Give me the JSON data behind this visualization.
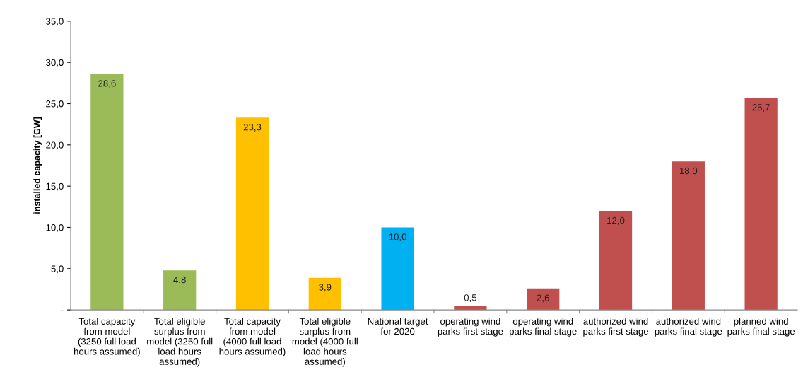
{
  "chart_data": {
    "type": "bar",
    "ylabel": "installed capacity [GW]",
    "categories": [
      "Total capacity\nfrom model\n(3250 full load\nhours assumed)",
      "Total eligible\nsurplus from\nmodel (3250 full\nload hours\nassumed)",
      "Total capacity\nfrom model\n(4000 full load\nhours assumed)",
      "Total eligible\nsurplus from\nmodel (4000 full\nload hours\nassumed)",
      "National target\nfor 2020",
      "operating wind\nparks first stage",
      "operating wind\nparks final stage",
      "authorized wind\nparks first stage",
      "authorized wind\nparks final stage",
      "planned wind\nparks final stage"
    ],
    "values": [
      28.6,
      4.8,
      23.3,
      3.9,
      10.0,
      0.5,
      2.6,
      12.0,
      18.0,
      25.7
    ],
    "value_labels": [
      "28,6",
      "4,8",
      "23,3",
      "3,9",
      "10,0",
      "0,5",
      "2,6",
      "12,0",
      "18,0",
      "25,7"
    ],
    "colors": [
      "#9bbb59",
      "#9bbb59",
      "#ffc000",
      "#ffc000",
      "#00b0f0",
      "#c0504d",
      "#c0504d",
      "#c0504d",
      "#c0504d",
      "#c0504d"
    ],
    "ylim": [
      0,
      35
    ],
    "yticks": [
      {
        "value": 0,
        "label": "-"
      },
      {
        "value": 5,
        "label": "5,0"
      },
      {
        "value": 10,
        "label": "10,0"
      },
      {
        "value": 15,
        "label": "15,0"
      },
      {
        "value": 20,
        "label": "20,0"
      },
      {
        "value": 25,
        "label": "25,0"
      },
      {
        "value": 30,
        "label": "30,0"
      },
      {
        "value": 35,
        "label": "35,0"
      }
    ],
    "grid": false,
    "legend": false
  }
}
